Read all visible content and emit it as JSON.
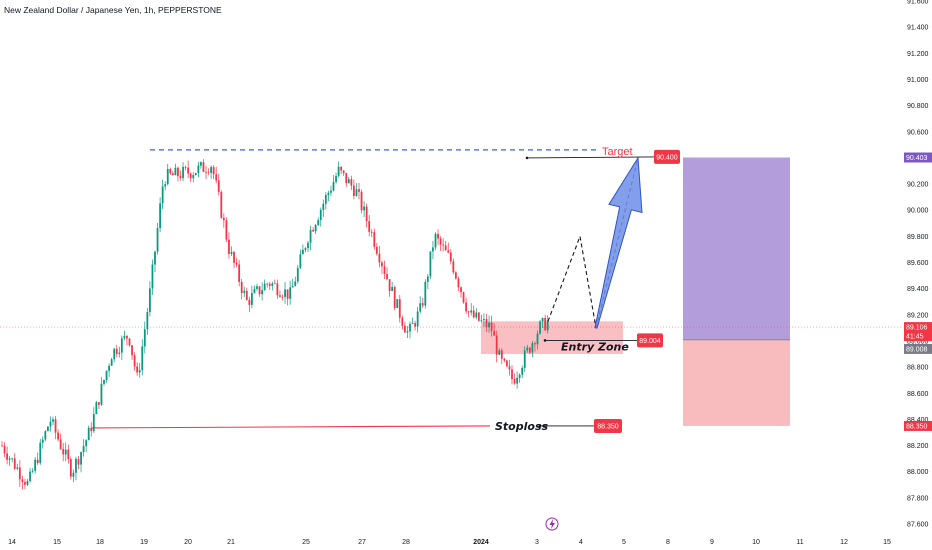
{
  "chart_title": "New Zealand Dollar / Japanese Yen, 1h, PEPPERSTONE",
  "chart_data": {
    "type": "candlestick",
    "symbol": "NZD/JPY",
    "timeframe": "1h",
    "broker": "PEPPERSTONE",
    "ylim": [
      87.6,
      91.6
    ],
    "y_ticks": [
      "91.600",
      "91.400",
      "91.200",
      "91.000",
      "90.800",
      "90.600",
      "90.400",
      "90.200",
      "90.000",
      "89.800",
      "89.600",
      "89.400",
      "89.200",
      "89.000",
      "88.800",
      "88.600",
      "88.400",
      "88.200",
      "88.000",
      "87.800",
      "87.600"
    ],
    "x_ticks": [
      "14",
      "15",
      "18",
      "19",
      "20",
      "21",
      "25",
      "27",
      "28",
      "2024",
      "3",
      "4",
      "5",
      "8",
      "9",
      "10",
      "11",
      "12",
      "15"
    ],
    "price_path": [
      [
        0,
        88.2
      ],
      [
        0.6,
        87.9
      ],
      [
        1.1,
        88.4
      ],
      [
        1.6,
        88.0
      ],
      [
        2.0,
        88.3
      ],
      [
        2.5,
        88.9
      ],
      [
        2.9,
        89.05
      ],
      [
        3.1,
        88.7
      ],
      [
        3.4,
        89.4
      ],
      [
        3.7,
        90.25
      ],
      [
        4.4,
        90.3
      ],
      [
        4.8,
        90.35
      ],
      [
        5.2,
        89.7
      ],
      [
        5.6,
        89.3
      ],
      [
        6.1,
        89.45
      ],
      [
        6.6,
        89.35
      ],
      [
        7.0,
        89.8
      ],
      [
        7.7,
        90.3
      ],
      [
        8.1,
        90.15
      ],
      [
        8.6,
        89.7
      ],
      [
        9.0,
        89.3
      ],
      [
        9.3,
        89.05
      ],
      [
        9.6,
        89.25
      ],
      [
        9.9,
        89.8
      ],
      [
        10.3,
        89.6
      ],
      [
        10.7,
        89.2
      ],
      [
        11.2,
        89.1
      ],
      [
        11.4,
        88.85
      ],
      [
        11.7,
        88.7
      ],
      [
        12.0,
        88.9
      ],
      [
        12.3,
        89.1
      ],
      [
        12.5,
        89.15
      ]
    ],
    "projection_path": [
      [
        12.5,
        89.15
      ],
      [
        12.9,
        89.8
      ],
      [
        13.3,
        89.1
      ]
    ],
    "arrow": {
      "from": 89.1,
      "to": 90.4
    },
    "levels": {
      "target": 90.4,
      "entry": 89.004,
      "stoploss": 88.35,
      "current": 89.106,
      "position_top": 90.403,
      "position_entry": 89.008,
      "position_stop": 88.35
    },
    "entry_zone": [
      88.9,
      89.15
    ],
    "annotations": [
      {
        "text": "Target",
        "value": 90.4
      },
      {
        "text": "Entry Zone",
        "value": 89.004
      },
      {
        "text": "Stoploss",
        "value": 88.35
      }
    ],
    "price_labels": {
      "target": "90.400",
      "entry": "89.004",
      "stoploss": "88.350",
      "axis_top": "90.403",
      "axis_current": "89.106",
      "axis_timer": "41:45",
      "axis_entry": "89.008",
      "axis_stop": "88.350"
    },
    "colors": {
      "up": "#089981",
      "down": "#f23645",
      "target_line": "#2962ff",
      "zone": "#f7a9ae",
      "profit": "#b39ddb",
      "loss": "#f8bcbf",
      "arrow": "#6d8de6"
    },
    "grid": false
  }
}
